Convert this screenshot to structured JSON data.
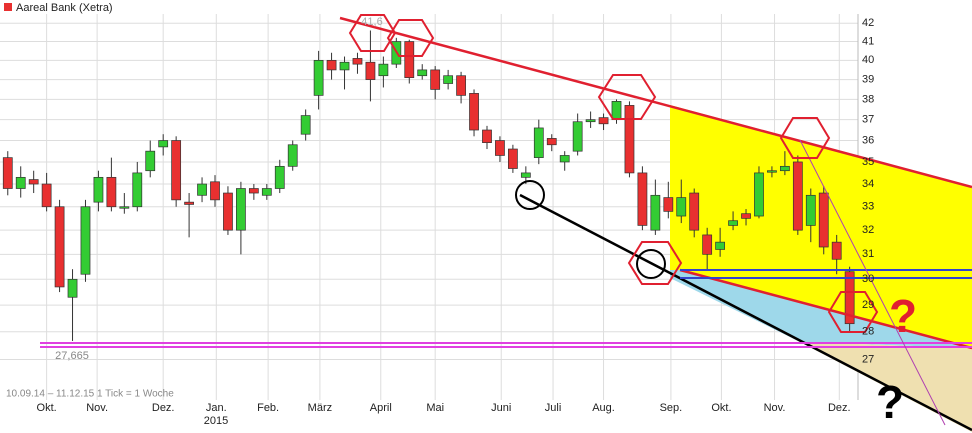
{
  "chart_data": {
    "type": "candlestick",
    "title": "Aareal Bank (Xetra)",
    "footer": "10.09.14 – 11.12.15   1 Tick = 1 Woche",
    "year_label": "2015",
    "annotations": [
      "41,6",
      "27,665",
      "?",
      "?"
    ],
    "open": [
      35.2,
      33.8,
      34.2,
      34.0,
      33.0,
      29.3,
      30.2,
      33.2,
      34.3,
      33.0,
      33.0,
      34.6,
      35.7,
      36.0,
      33.2,
      33.5,
      34.1,
      33.6,
      32.0,
      33.8,
      33.5,
      33.8,
      34.8,
      36.3,
      38.2,
      40.0,
      39.5,
      40.1,
      39.9,
      39.2,
      39.8,
      41.0,
      39.2,
      39.5,
      38.8,
      39.2,
      38.3,
      36.5,
      36.0,
      35.6,
      34.3,
      35.2,
      36.1,
      35.0,
      35.5,
      36.9,
      37.1,
      37.0,
      37.7,
      34.5,
      32.0,
      33.4,
      32.6,
      33.6,
      31.8,
      31.2,
      32.2,
      32.7,
      32.6,
      34.6,
      34.6,
      35.0,
      32.2,
      33.6,
      31.5,
      30.3
    ],
    "high": [
      35.5,
      34.8,
      34.6,
      34.5,
      33.3,
      30.4,
      33.3,
      34.6,
      35.2,
      33.6,
      35.0,
      36.0,
      36.3,
      36.2,
      33.6,
      34.3,
      34.4,
      33.9,
      34.1,
      34.0,
      34.0,
      35.1,
      36.0,
      37.5,
      40.5,
      40.4,
      40.2,
      40.4,
      41.6,
      40.2,
      41.2,
      41.1,
      39.8,
      39.7,
      39.5,
      39.4,
      38.5,
      36.7,
      36.2,
      35.8,
      34.8,
      37.0,
      36.3,
      35.5,
      37.3,
      37.4,
      37.3,
      38.0,
      37.9,
      34.8,
      34.2,
      34.1,
      34.2,
      33.8,
      32.1,
      32.1,
      32.8,
      32.9,
      34.8,
      34.8,
      35.5,
      35.3,
      33.8,
      33.9,
      31.8,
      30.5
    ],
    "low": [
      33.5,
      33.4,
      33.6,
      32.8,
      29.5,
      27.665,
      29.9,
      32.8,
      32.8,
      32.7,
      32.8,
      34.3,
      35.3,
      33.0,
      31.7,
      33.2,
      33.0,
      31.8,
      31.0,
      33.3,
      33.3,
      33.6,
      34.6,
      36.0,
      37.5,
      39.0,
      38.5,
      39.3,
      37.9,
      38.6,
      39.6,
      38.8,
      39.0,
      38.0,
      38.5,
      37.8,
      36.2,
      35.6,
      35.0,
      34.5,
      34.0,
      34.9,
      35.5,
      34.6,
      35.3,
      36.6,
      36.5,
      36.8,
      34.3,
      32.0,
      31.8,
      32.5,
      32.3,
      31.7,
      30.4,
      30.9,
      32.0,
      32.2,
      32.5,
      34.3,
      34.4,
      31.8,
      31.5,
      31.0,
      30.2,
      28.0
    ],
    "close": [
      33.8,
      34.3,
      34.0,
      33.0,
      29.7,
      30.0,
      33.0,
      34.3,
      33.0,
      33.0,
      34.5,
      35.5,
      36.0,
      33.3,
      33.1,
      34.0,
      33.3,
      32.0,
      33.8,
      33.6,
      33.8,
      34.8,
      35.8,
      37.2,
      40.0,
      39.5,
      39.9,
      39.8,
      39.0,
      39.8,
      41.0,
      39.1,
      39.5,
      38.5,
      39.2,
      38.2,
      36.5,
      35.9,
      35.3,
      34.7,
      34.5,
      36.6,
      35.8,
      35.3,
      36.9,
      37.0,
      36.8,
      37.9,
      34.5,
      32.2,
      33.5,
      32.8,
      33.4,
      32.0,
      31.0,
      31.5,
      32.4,
      32.5,
      34.5,
      34.6,
      34.8,
      32.0,
      33.5,
      31.3,
      30.8,
      28.3
    ],
    "up_color": "#33cc33",
    "down_color": "#e83030",
    "xlim": [
      -0.6,
      65.8
    ],
    "xticks": [
      {
        "value": 3.0,
        "label": "Okt."
      },
      {
        "value": 6.9,
        "label": "Nov."
      },
      {
        "value": 12.0,
        "label": "Dez."
      },
      {
        "value": 16.1,
        "label": "Jan."
      },
      {
        "value": 20.1,
        "label": "Feb."
      },
      {
        "value": 24.1,
        "label": "März"
      },
      {
        "value": 28.8,
        "label": "April"
      },
      {
        "value": 33.0,
        "label": "Mai"
      },
      {
        "value": 38.1,
        "label": "Juni"
      },
      {
        "value": 42.1,
        "label": "Juli"
      },
      {
        "value": 46.0,
        "label": "Aug."
      },
      {
        "value": 51.2,
        "label": "Sep."
      },
      {
        "value": 55.1,
        "label": "Okt."
      },
      {
        "value": 59.2,
        "label": "Nov."
      },
      {
        "value": 64.2,
        "label": "Dez."
      }
    ],
    "ylim": [
      25.6,
      43.3
    ],
    "log_scale": true,
    "yticks": [
      27,
      28,
      29,
      30,
      31,
      32,
      33,
      34,
      35,
      36,
      37,
      38,
      39,
      40,
      41,
      42
    ],
    "grid": true
  }
}
